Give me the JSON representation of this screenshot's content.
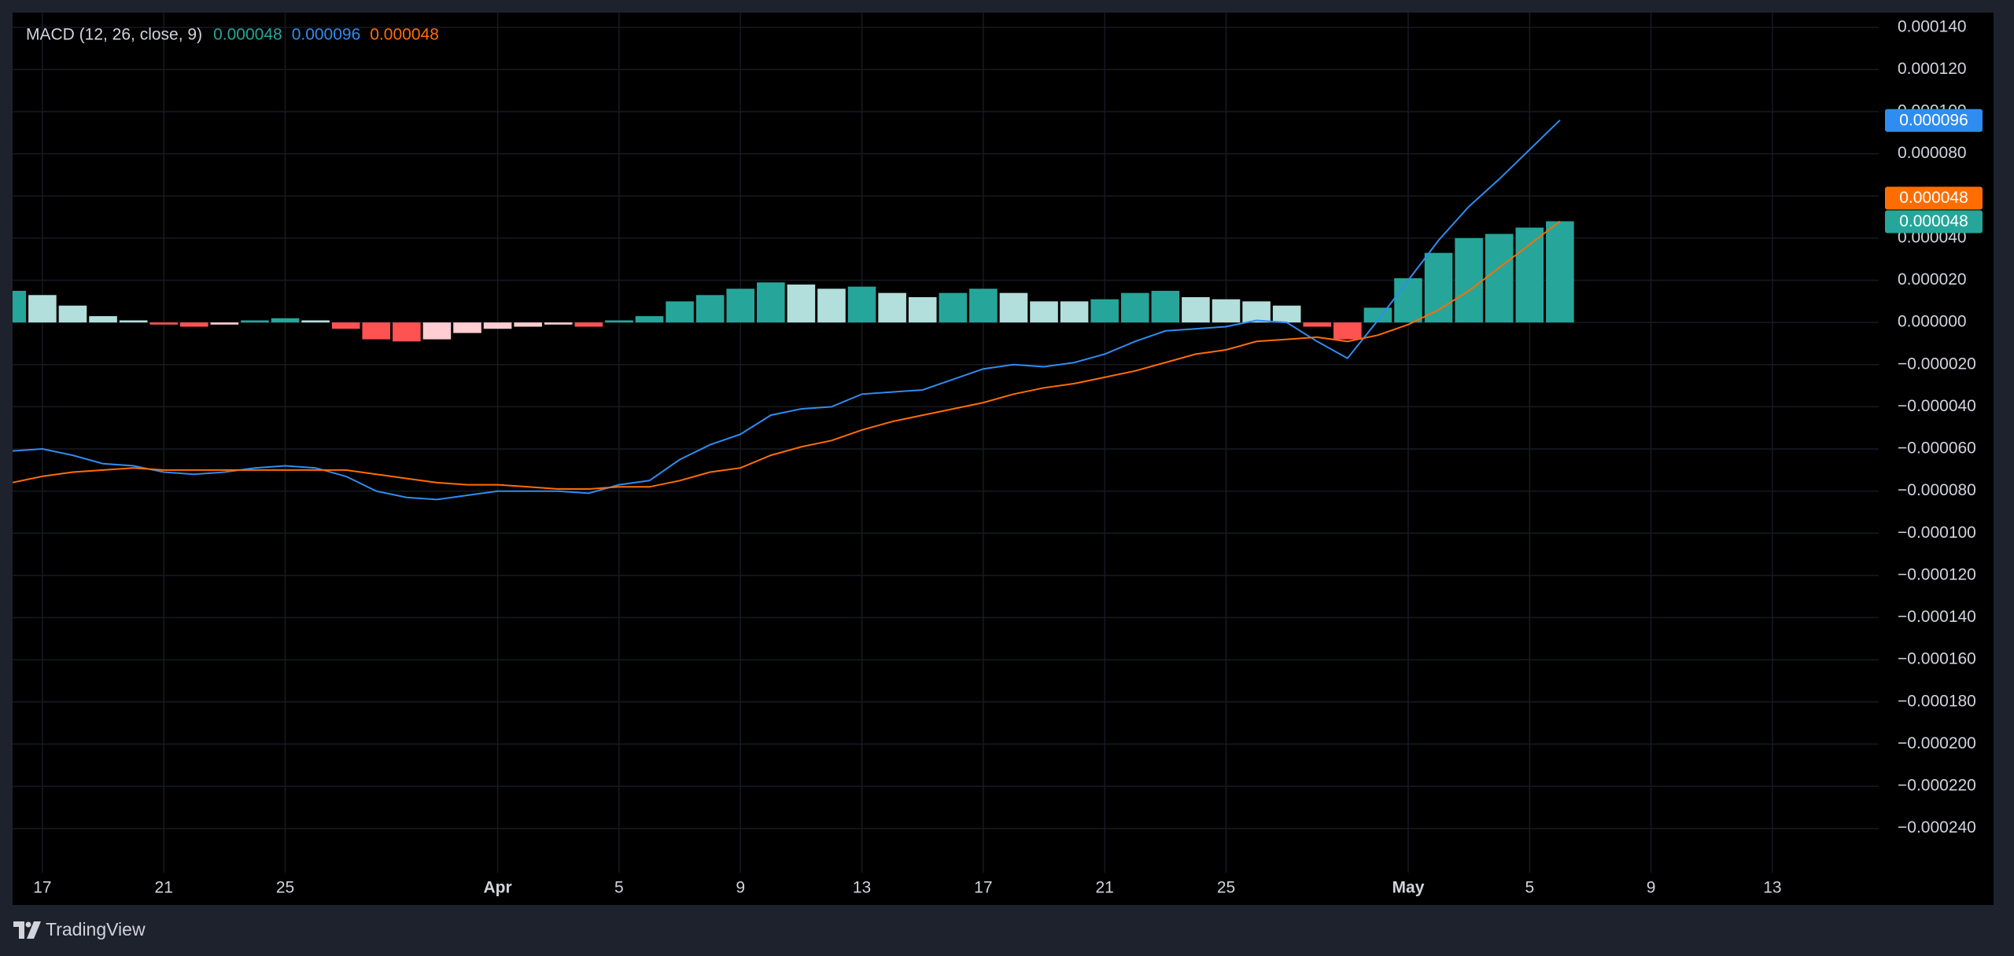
{
  "chart_data": {
    "type": "macd",
    "title": "MACD (12, 26, close, 9)",
    "categories": [
      null,
      "17",
      null,
      null,
      null,
      "21",
      null,
      null,
      null,
      "25",
      null,
      null,
      null,
      null,
      null,
      null,
      "Apr",
      null,
      null,
      null,
      "5",
      null,
      null,
      null,
      "9",
      null,
      null,
      null,
      "13",
      null,
      null,
      null,
      "17",
      null,
      null,
      null,
      "21",
      null,
      null,
      null,
      "25",
      null,
      null,
      null,
      null,
      null,
      "May",
      null,
      null,
      null,
      "5",
      null,
      null,
      null,
      "9",
      null,
      null,
      null,
      "13",
      null,
      null,
      null
    ],
    "bold_categories": [
      "Apr",
      "May"
    ],
    "series": [
      {
        "kind": "histogram",
        "colors": {
          "grow_above": "#26a69a",
          "fall_above": "#b2dfdb",
          "grow_below": "#ff5252",
          "fall_below": "#ffcdd2"
        },
        "color": "#26a69a",
        "last_label": "0.000048",
        "values": [
          1.5e-05,
          1.3e-05,
          8e-06,
          3e-06,
          1e-06,
          -1e-06,
          -2e-06,
          -1e-06,
          1e-06,
          2e-06,
          1e-06,
          -3e-06,
          -8e-06,
          -9e-06,
          -8e-06,
          -5e-06,
          -3e-06,
          -2e-06,
          -1e-06,
          -2e-06,
          1e-06,
          3e-06,
          1e-05,
          1.3e-05,
          1.6e-05,
          1.9e-05,
          1.8e-05,
          1.6e-05,
          1.7e-05,
          1.4e-05,
          1.2e-05,
          1.4e-05,
          1.6e-05,
          1.4e-05,
          1e-05,
          1e-05,
          1.1e-05,
          1.4e-05,
          1.5e-05,
          1.2e-05,
          1.1e-05,
          1e-05,
          8e-06,
          -2e-06,
          -8e-06,
          7e-06,
          2.1e-05,
          3.3e-05,
          4e-05,
          4.2e-05,
          4.5e-05,
          4.8e-05,
          null,
          null,
          null,
          null,
          null,
          null,
          null,
          null,
          null,
          null
        ]
      },
      {
        "kind": "line",
        "color": "#2f8cf0",
        "last_label": "0.000096",
        "values": [
          -6.1e-05,
          -6e-05,
          -6.3e-05,
          -6.7e-05,
          -6.8e-05,
          -7.1e-05,
          -7.2e-05,
          -7.1e-05,
          -6.9e-05,
          -6.8e-05,
          -6.9e-05,
          -7.3e-05,
          -8e-05,
          -8.3e-05,
          -8.4e-05,
          -8.2e-05,
          -8e-05,
          -8e-05,
          -8e-05,
          -8.1e-05,
          -7.7e-05,
          -7.5e-05,
          -6.5e-05,
          -5.8e-05,
          -5.3e-05,
          -4.4e-05,
          -4.1e-05,
          -4e-05,
          -3.4e-05,
          -3.3e-05,
          -3.2e-05,
          -2.7e-05,
          -2.2e-05,
          -2e-05,
          -2.1e-05,
          -1.9e-05,
          -1.5e-05,
          -9e-06,
          -4e-06,
          -3e-06,
          -2e-06,
          1e-06,
          0,
          -9e-06,
          -1.7e-05,
          1e-06,
          2e-05,
          3.9e-05,
          5.5e-05,
          6.8e-05,
          8.2e-05,
          9.6e-05,
          null,
          null,
          null,
          null,
          null,
          null,
          null,
          null,
          null,
          null
        ]
      },
      {
        "kind": "line",
        "color": "#ff6d00",
        "last_label": "0.000048",
        "values": [
          -7.6e-05,
          -7.3e-05,
          -7.1e-05,
          -7e-05,
          -6.9e-05,
          -7e-05,
          -7e-05,
          -7e-05,
          -7e-05,
          -7e-05,
          -7e-05,
          -7e-05,
          -7.2e-05,
          -7.4e-05,
          -7.6e-05,
          -7.7e-05,
          -7.7e-05,
          -7.8e-05,
          -7.9e-05,
          -7.9e-05,
          -7.8e-05,
          -7.8e-05,
          -7.5e-05,
          -7.1e-05,
          -6.9e-05,
          -6.3e-05,
          -5.9e-05,
          -5.6e-05,
          -5.1e-05,
          -4.7e-05,
          -4.4e-05,
          -4.1e-05,
          -3.8e-05,
          -3.4e-05,
          -3.1e-05,
          -2.9e-05,
          -2.6e-05,
          -2.3e-05,
          -1.9e-05,
          -1.5e-05,
          -1.3e-05,
          -9e-06,
          -8e-06,
          -7e-06,
          -9e-06,
          -6e-06,
          -1e-06,
          6e-06,
          1.5e-05,
          2.6e-05,
          3.7e-05,
          4.8e-05,
          null,
          null,
          null,
          null,
          null,
          null,
          null,
          null,
          null,
          null
        ]
      }
    ],
    "legend_order": [
      0,
      1,
      2
    ],
    "ylim": [
      -0.000261,
      0.000147
    ],
    "yticks": [
      {
        "value": 0.00014,
        "label": "0.000140"
      },
      {
        "value": 0.00012,
        "label": "0.000120"
      },
      {
        "value": 0.0001,
        "label": "0.000100"
      },
      {
        "value": 8e-05,
        "label": "0.000080"
      },
      {
        "value": 6e-05,
        "label": "0.000060"
      },
      {
        "value": 4e-05,
        "label": "0.000040"
      },
      {
        "value": 2e-05,
        "label": "0.000020"
      },
      {
        "value": 0,
        "label": "0.000000"
      },
      {
        "value": -2e-05,
        "label": "−0.000020"
      },
      {
        "value": -4e-05,
        "label": "−0.000040"
      },
      {
        "value": -6e-05,
        "label": "−0.000060"
      },
      {
        "value": -8e-05,
        "label": "−0.000080"
      },
      {
        "value": -0.0001,
        "label": "−0.000100"
      },
      {
        "value": -0.00012,
        "label": "−0.000120"
      },
      {
        "value": -0.00014,
        "label": "−0.000140"
      },
      {
        "value": -0.00016,
        "label": "−0.000160"
      },
      {
        "value": -0.00018,
        "label": "−0.000180"
      },
      {
        "value": -0.0002,
        "label": "−0.000200"
      },
      {
        "value": -0.00022,
        "label": "−0.000220"
      },
      {
        "value": -0.00024,
        "label": "−0.000240"
      }
    ],
    "grid": true
  },
  "footer": {
    "brand": "TradingView"
  }
}
